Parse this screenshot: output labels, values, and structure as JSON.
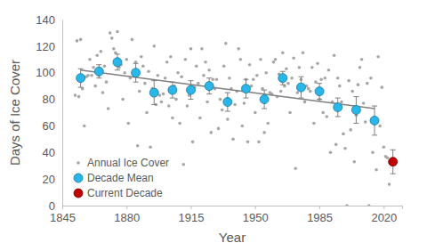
{
  "chart_data": {
    "type": "scatter",
    "x_label": "Year",
    "y_label": "Days of Ice Cover",
    "xlim": [
      1845,
      2030
    ],
    "ylim": [
      0,
      140
    ],
    "xticks": [
      1845,
      1880,
      1915,
      1950,
      1985,
      2020
    ],
    "yticks": [
      0,
      20,
      40,
      60,
      80,
      100,
      120,
      140
    ],
    "grid": false,
    "legend": "lower left",
    "series": [
      {
        "name": "Annual Ice Cover",
        "color": "#a6a6a6",
        "marker": "circle",
        "x": [
          1852,
          1853,
          1854,
          1855,
          1856,
          1857,
          1858,
          1859,
          1860,
          1861,
          1862,
          1863,
          1864,
          1865,
          1866,
          1867,
          1868,
          1869,
          1870,
          1871,
          1872,
          1873,
          1874,
          1875,
          1876,
          1877,
          1878,
          1879,
          1880,
          1881,
          1882,
          1883,
          1884,
          1885,
          1886,
          1887,
          1888,
          1889,
          1890,
          1891,
          1892,
          1893,
          1894,
          1895,
          1896,
          1897,
          1898,
          1899,
          1900,
          1901,
          1902,
          1903,
          1904,
          1905,
          1906,
          1907,
          1908,
          1909,
          1910,
          1911,
          1912,
          1913,
          1914,
          1915,
          1916,
          1917,
          1918,
          1919,
          1920,
          1921,
          1922,
          1923,
          1924,
          1925,
          1926,
          1927,
          1928,
          1929,
          1930,
          1931,
          1932,
          1933,
          1934,
          1935,
          1936,
          1937,
          1938,
          1939,
          1940,
          1941,
          1942,
          1943,
          1944,
          1945,
          1946,
          1947,
          1948,
          1949,
          1950,
          1951,
          1952,
          1953,
          1954,
          1955,
          1956,
          1957,
          1958,
          1959,
          1960,
          1961,
          1962,
          1963,
          1964,
          1965,
          1966,
          1967,
          1968,
          1969,
          1970,
          1971,
          1972,
          1973,
          1974,
          1975,
          1976,
          1977,
          1978,
          1979,
          1980,
          1981,
          1982,
          1983,
          1984,
          1985,
          1986,
          1987,
          1988,
          1989,
          1990,
          1991,
          1992,
          1993,
          1994,
          1995,
          1996,
          1997,
          1998,
          1999,
          2000,
          2001,
          2002,
          2003,
          2004,
          2005,
          2006,
          2007,
          2008,
          2009,
          2010,
          2011,
          2012,
          2013,
          2014,
          2015,
          2016,
          2017,
          2018,
          2019,
          2020,
          2021,
          2022,
          2023,
          2024
        ],
        "values": [
          83,
          124,
          82,
          125,
          88,
          60,
          97,
          98,
          110,
          98,
          104,
          90,
          113,
          98,
          116,
          85,
          105,
          93,
          73,
          130,
          126,
          118,
          115,
          131,
          104,
          106,
          80,
          100,
          110,
          62,
          96,
          125,
          100,
          108,
          45,
          86,
          112,
          105,
          92,
          70,
          101,
          44,
          88,
          120,
          76,
          98,
          83,
          78,
          84,
          96,
          108,
          75,
          112,
          66,
          90,
          80,
          100,
          62,
          97,
          31,
          110,
          75,
          83,
          118,
          48,
          89,
          105,
          92,
          66,
          118,
          98,
          108,
          78,
          102,
          55,
          95,
          88,
          95,
          58,
          80,
          72,
          105,
          122,
          65,
          96,
          88,
          50,
          76,
          86,
          118,
          110,
          60,
          77,
          95,
          48,
          106,
          90,
          95,
          70,
          98,
          48,
          110,
          88,
          55,
          100,
          62,
          85,
          84,
          108,
          110,
          82,
          99,
          86,
          115,
          90,
          103,
          92,
          70,
          96,
          111,
          28,
          85,
          104,
          95,
          115,
          78,
          90,
          88,
          86,
          104,
          62,
          93,
          107,
          80,
          95,
          70,
          96,
          67,
          102,
          40,
          78,
          113,
          46,
          96,
          90,
          78,
          54,
          43,
          0,
          94,
          57,
          86,
          33,
          68,
          91,
          104,
          110,
          77,
          63,
          92,
          0,
          96,
          40,
          66,
          27,
          112,
          60,
          89,
          44,
          37,
          36,
          16,
          33
        ]
      },
      {
        "type": "line",
        "color": "#808080",
        "line_style": "solid",
        "x": [
          1855,
          2015
        ],
        "values": [
          102,
          73
        ]
      },
      {
        "name": "Decade Mean",
        "color": "#29b6e8",
        "marker": "circle",
        "x": [
          1855,
          1865,
          1875,
          1885,
          1895,
          1905,
          1915,
          1925,
          1935,
          1945,
          1955,
          1965,
          1975,
          1985,
          1995,
          2005,
          2015
        ],
        "values": [
          96,
          101,
          108,
          100,
          85,
          87,
          87,
          90,
          78,
          88,
          80,
          96,
          89,
          86,
          74,
          72,
          64
        ],
        "error": [
          7,
          5,
          6,
          7,
          9,
          6,
          7,
          6,
          7,
          7,
          7,
          5,
          8,
          6,
          7,
          10,
          11
        ]
      },
      {
        "name": "Current Decade",
        "color": "#c00000",
        "marker": "circle",
        "x": [
          2025
        ],
        "values": [
          33
        ],
        "error": [
          9
        ]
      }
    ]
  }
}
